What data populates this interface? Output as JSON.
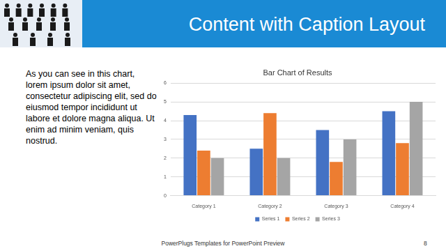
{
  "slide": {
    "title": "Content with Caption Layout",
    "caption": "As you can see in this chart, lorem ipsum dolor sit amet, consectetur adipiscing elit, sed do eiusmod tempor incididunt ut labore et dolore magna aliqua. Ut enim ad minim veniam, quis nostrud.",
    "footer": "PowerPlugs Templates for PowerPoint Preview",
    "page": "8"
  },
  "chart_data": {
    "type": "bar",
    "title": "Bar Chart of Results",
    "categories": [
      "Category 1",
      "Category 2",
      "Category 3",
      "Category 4"
    ],
    "series": [
      {
        "name": "Series 1",
        "color": "#4472c4",
        "values": [
          4.3,
          2.5,
          3.5,
          4.5
        ]
      },
      {
        "name": "Series 2",
        "color": "#ed7d31",
        "values": [
          2.4,
          4.4,
          1.8,
          2.8
        ]
      },
      {
        "name": "Series 3",
        "color": "#a5a5a5",
        "values": [
          2.0,
          2.0,
          3.0,
          5.0
        ]
      }
    ],
    "ylim": [
      0,
      6
    ],
    "yticks": [
      0,
      1,
      2,
      3,
      4,
      5,
      6
    ],
    "grid": true,
    "legend": "bottom"
  }
}
